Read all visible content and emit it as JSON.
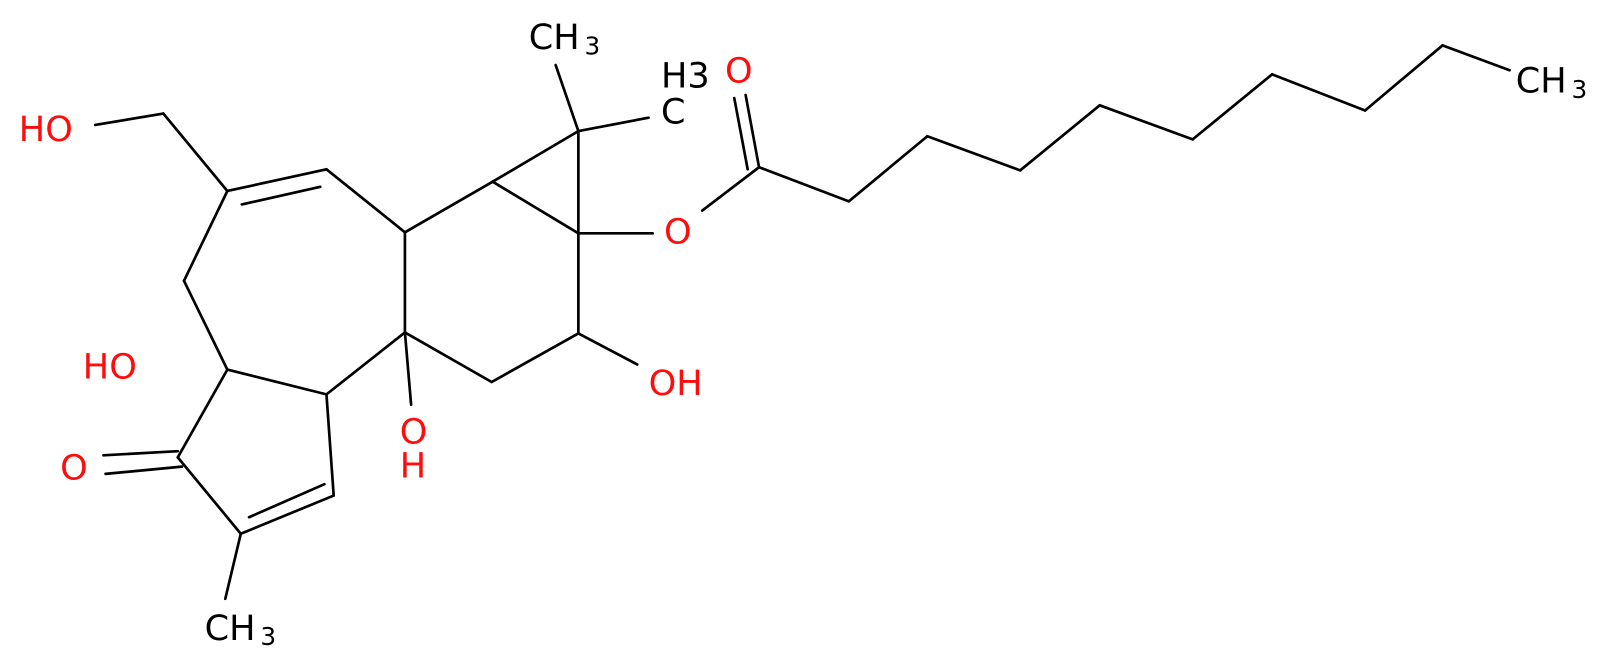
{
  "atoms": [
    {
      "label": "HO"
    },
    {
      "label": "CH",
      "sub": "3"
    },
    {
      "label": "C",
      "sub": "H3"
    },
    {
      "label": "O"
    },
    {
      "label": "O"
    },
    {
      "label": "CH",
      "sub": "3"
    },
    {
      "label": "OH"
    },
    {
      "label": "O",
      "below": "H"
    },
    {
      "label": "HO"
    },
    {
      "label": "O"
    },
    {
      "label": "CH",
      "sub": "3"
    }
  ]
}
